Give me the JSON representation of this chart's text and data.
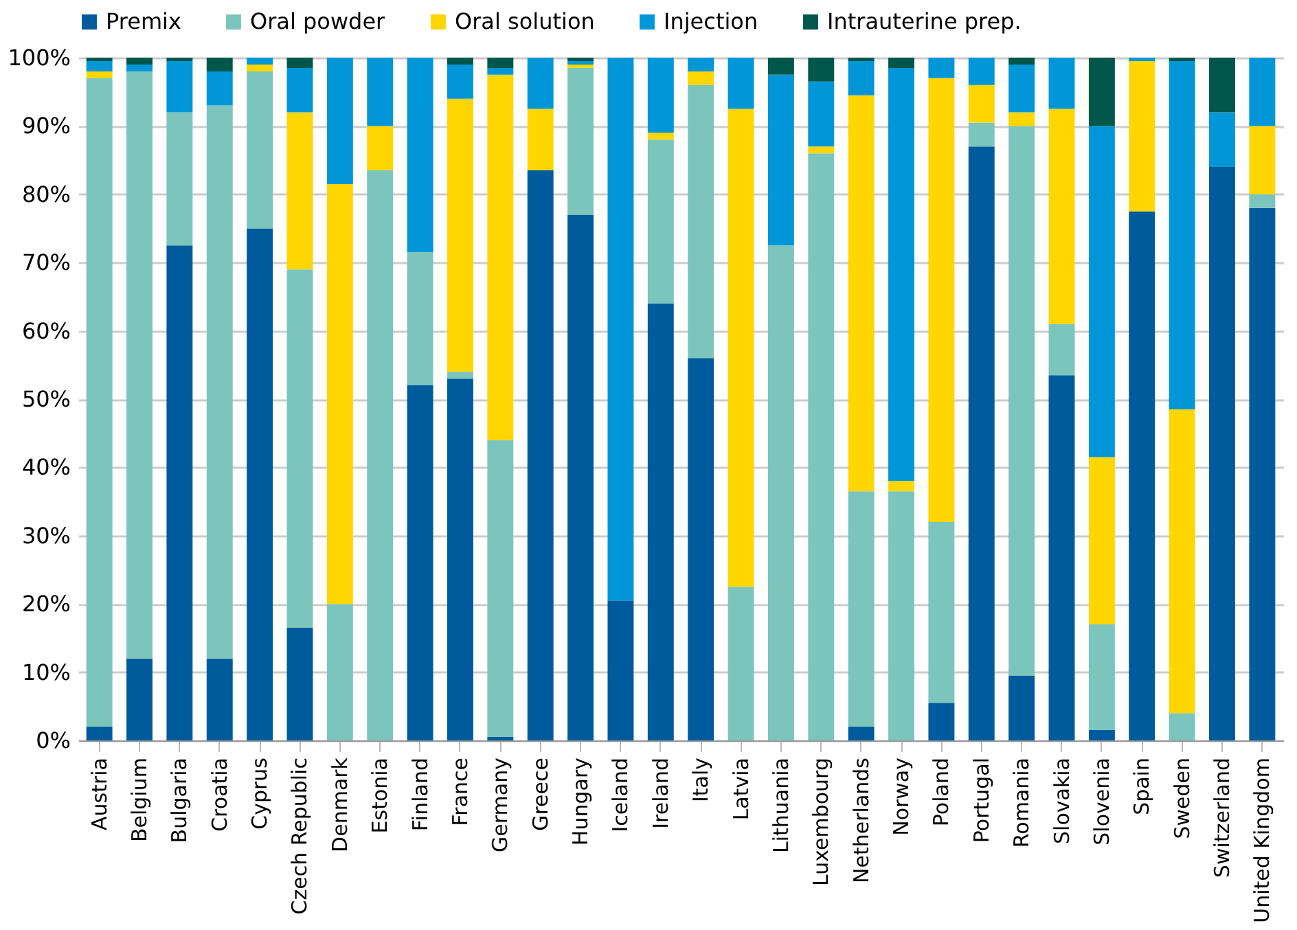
{
  "chart_data": {
    "type": "bar",
    "stacked": true,
    "categories": [
      "Austria",
      "Belgium",
      "Bulgaria",
      "Croatia",
      "Cyprus",
      "Czech Republic",
      "Denmark",
      "Estonia",
      "Finland",
      "France",
      "Germany",
      "Greece",
      "Hungary",
      "Iceland",
      "Ireland",
      "Italy",
      "Latvia",
      "Lithuania",
      "Luxembourg",
      "Netherlands",
      "Norway",
      "Poland",
      "Portugal",
      "Romania",
      "Slovakia",
      "Slovenia",
      "Spain",
      "Sweden",
      "Switzerland",
      "United Kingdom"
    ],
    "series": [
      {
        "name": "Premix",
        "color": "#005b9c",
        "values": [
          2,
          12,
          72.5,
          12,
          75,
          16.5,
          0,
          0,
          52,
          53,
          0.5,
          83.5,
          77,
          20.5,
          64,
          56,
          0,
          0,
          0,
          2,
          0,
          5.5,
          87,
          9.5,
          53.5,
          1.5,
          77.5,
          0,
          84,
          78
        ]
      },
      {
        "name": "Oral powder",
        "color": "#7cc5bd",
        "values": [
          95,
          86,
          19.5,
          81,
          23,
          52.5,
          20,
          83.5,
          19.5,
          1,
          43.5,
          0,
          21.5,
          0,
          24,
          40,
          22.5,
          72.5,
          86,
          34.5,
          36.5,
          26.5,
          3.5,
          80.5,
          7.5,
          15.5,
          0,
          4,
          0,
          2
        ]
      },
      {
        "name": "Oral solution",
        "color": "#ffd600",
        "values": [
          1,
          0,
          0,
          0,
          1,
          23,
          61.5,
          6.5,
          0,
          40,
          53.5,
          9,
          0.5,
          0,
          1,
          2,
          70,
          0,
          1,
          58,
          1.5,
          65,
          5.5,
          2,
          31.5,
          24.5,
          22,
          44.5,
          0,
          10
        ]
      },
      {
        "name": "Injection",
        "color": "#0096d8",
        "values": [
          1.5,
          1,
          7.5,
          5,
          1,
          6.5,
          18.5,
          10,
          28.5,
          5,
          1,
          7.5,
          0.5,
          79.5,
          11,
          2,
          7.5,
          25,
          9.5,
          5,
          60.5,
          3,
          4,
          7,
          7.5,
          48.5,
          0.5,
          51,
          8,
          10
        ]
      },
      {
        "name": "Intrauterine prep.",
        "color": "#00574a",
        "values": [
          0.5,
          1,
          0.5,
          2,
          0,
          1.5,
          0,
          0,
          0,
          1,
          1.5,
          0,
          0.5,
          0,
          0,
          0,
          0,
          2.5,
          3.5,
          0.5,
          1.5,
          0,
          0,
          1,
          0,
          10,
          0,
          0.5,
          8,
          0
        ]
      }
    ],
    "ylim": [
      0,
      100
    ],
    "yticks": [
      {
        "value": 0,
        "label": "0%"
      },
      {
        "value": 10,
        "label": "10%"
      },
      {
        "value": 20,
        "label": "20%"
      },
      {
        "value": 30,
        "label": "30%"
      },
      {
        "value": 40,
        "label": "40%"
      },
      {
        "value": 50,
        "label": "50%"
      },
      {
        "value": 60,
        "label": "60%"
      },
      {
        "value": 70,
        "label": "70%"
      },
      {
        "value": 80,
        "label": "80%"
      },
      {
        "value": 90,
        "label": "90%"
      },
      {
        "value": 100,
        "label": "100%"
      }
    ],
    "grid": "y",
    "legend": "top"
  }
}
